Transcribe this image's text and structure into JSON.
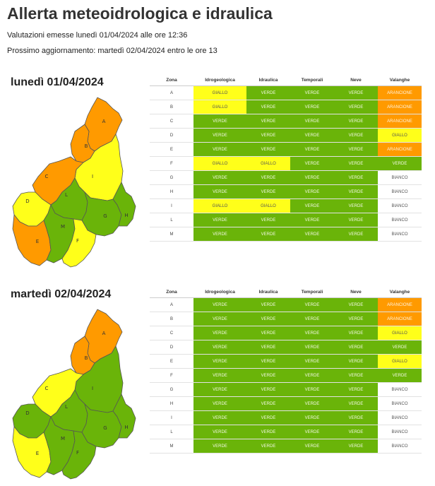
{
  "header": {
    "title": "Allerta meteoidrologica e idraulica",
    "issued": "Valutazioni emesse lunedì 01/04/2024 alle ore 12:36",
    "next_update": "Prossimo aggiornamento: martedì 02/04/2024 entro le ore 13"
  },
  "columns": [
    "Zona",
    "Idrogeologica",
    "Idraulica",
    "Temporali",
    "Neve",
    "Valanghe"
  ],
  "colors": {
    "verde": "#6ab409",
    "giallo": "#ffff1a",
    "arancione": "#ff9a00",
    "bianco": "#ffffff"
  },
  "days": [
    {
      "title": "lunedì 01/04/2024",
      "rows": [
        {
          "zone": "A",
          "values": [
            "GIALLO",
            "VERDE",
            "VERDE",
            "VERDE",
            "ARANCIONE"
          ]
        },
        {
          "zone": "B",
          "values": [
            "GIALLO",
            "VERDE",
            "VERDE",
            "VERDE",
            "ARANCIONE"
          ]
        },
        {
          "zone": "C",
          "values": [
            "VERDE",
            "VERDE",
            "VERDE",
            "VERDE",
            "ARANCIONE"
          ]
        },
        {
          "zone": "D",
          "values": [
            "VERDE",
            "VERDE",
            "VERDE",
            "VERDE",
            "GIALLO"
          ]
        },
        {
          "zone": "E",
          "values": [
            "VERDE",
            "VERDE",
            "VERDE",
            "VERDE",
            "ARANCIONE"
          ]
        },
        {
          "zone": "F",
          "values": [
            "GIALLO",
            "GIALLO",
            "VERDE",
            "VERDE",
            "VERDE"
          ]
        },
        {
          "zone": "G",
          "values": [
            "VERDE",
            "VERDE",
            "VERDE",
            "VERDE",
            "BIANCO"
          ]
        },
        {
          "zone": "H",
          "values": [
            "VERDE",
            "VERDE",
            "VERDE",
            "VERDE",
            "BIANCO"
          ]
        },
        {
          "zone": "I",
          "values": [
            "GIALLO",
            "GIALLO",
            "VERDE",
            "VERDE",
            "BIANCO"
          ]
        },
        {
          "zone": "L",
          "values": [
            "VERDE",
            "VERDE",
            "VERDE",
            "VERDE",
            "BIANCO"
          ]
        },
        {
          "zone": "M",
          "values": [
            "VERDE",
            "VERDE",
            "VERDE",
            "VERDE",
            "BIANCO"
          ]
        }
      ],
      "map_zones": {
        "A": "arancione",
        "B": "arancione",
        "C": "arancione",
        "D": "giallo",
        "E": "arancione",
        "F": "giallo",
        "G": "verde",
        "H": "verde",
        "I": "giallo",
        "L": "verde",
        "M": "verde"
      }
    },
    {
      "title": "martedì 02/04/2024",
      "rows": [
        {
          "zone": "A",
          "values": [
            "VERDE",
            "VERDE",
            "VERDE",
            "VERDE",
            "ARANCIONE"
          ]
        },
        {
          "zone": "B",
          "values": [
            "VERDE",
            "VERDE",
            "VERDE",
            "VERDE",
            "ARANCIONE"
          ]
        },
        {
          "zone": "C",
          "values": [
            "VERDE",
            "VERDE",
            "VERDE",
            "VERDE",
            "GIALLO"
          ]
        },
        {
          "zone": "D",
          "values": [
            "VERDE",
            "VERDE",
            "VERDE",
            "VERDE",
            "VERDE"
          ]
        },
        {
          "zone": "E",
          "values": [
            "VERDE",
            "VERDE",
            "VERDE",
            "VERDE",
            "GIALLO"
          ]
        },
        {
          "zone": "F",
          "values": [
            "VERDE",
            "VERDE",
            "VERDE",
            "VERDE",
            "VERDE"
          ]
        },
        {
          "zone": "G",
          "values": [
            "VERDE",
            "VERDE",
            "VERDE",
            "VERDE",
            "BIANCO"
          ]
        },
        {
          "zone": "H",
          "values": [
            "VERDE",
            "VERDE",
            "VERDE",
            "VERDE",
            "BIANCO"
          ]
        },
        {
          "zone": "I",
          "values": [
            "VERDE",
            "VERDE",
            "VERDE",
            "VERDE",
            "BIANCO"
          ]
        },
        {
          "zone": "L",
          "values": [
            "VERDE",
            "VERDE",
            "VERDE",
            "VERDE",
            "BIANCO"
          ]
        },
        {
          "zone": "M",
          "values": [
            "VERDE",
            "VERDE",
            "VERDE",
            "VERDE",
            "BIANCO"
          ]
        }
      ],
      "map_zones": {
        "A": "arancione",
        "B": "arancione",
        "C": "giallo",
        "D": "verde",
        "E": "giallo",
        "F": "verde",
        "G": "verde",
        "H": "verde",
        "I": "verde",
        "L": "verde",
        "M": "verde"
      }
    }
  ]
}
